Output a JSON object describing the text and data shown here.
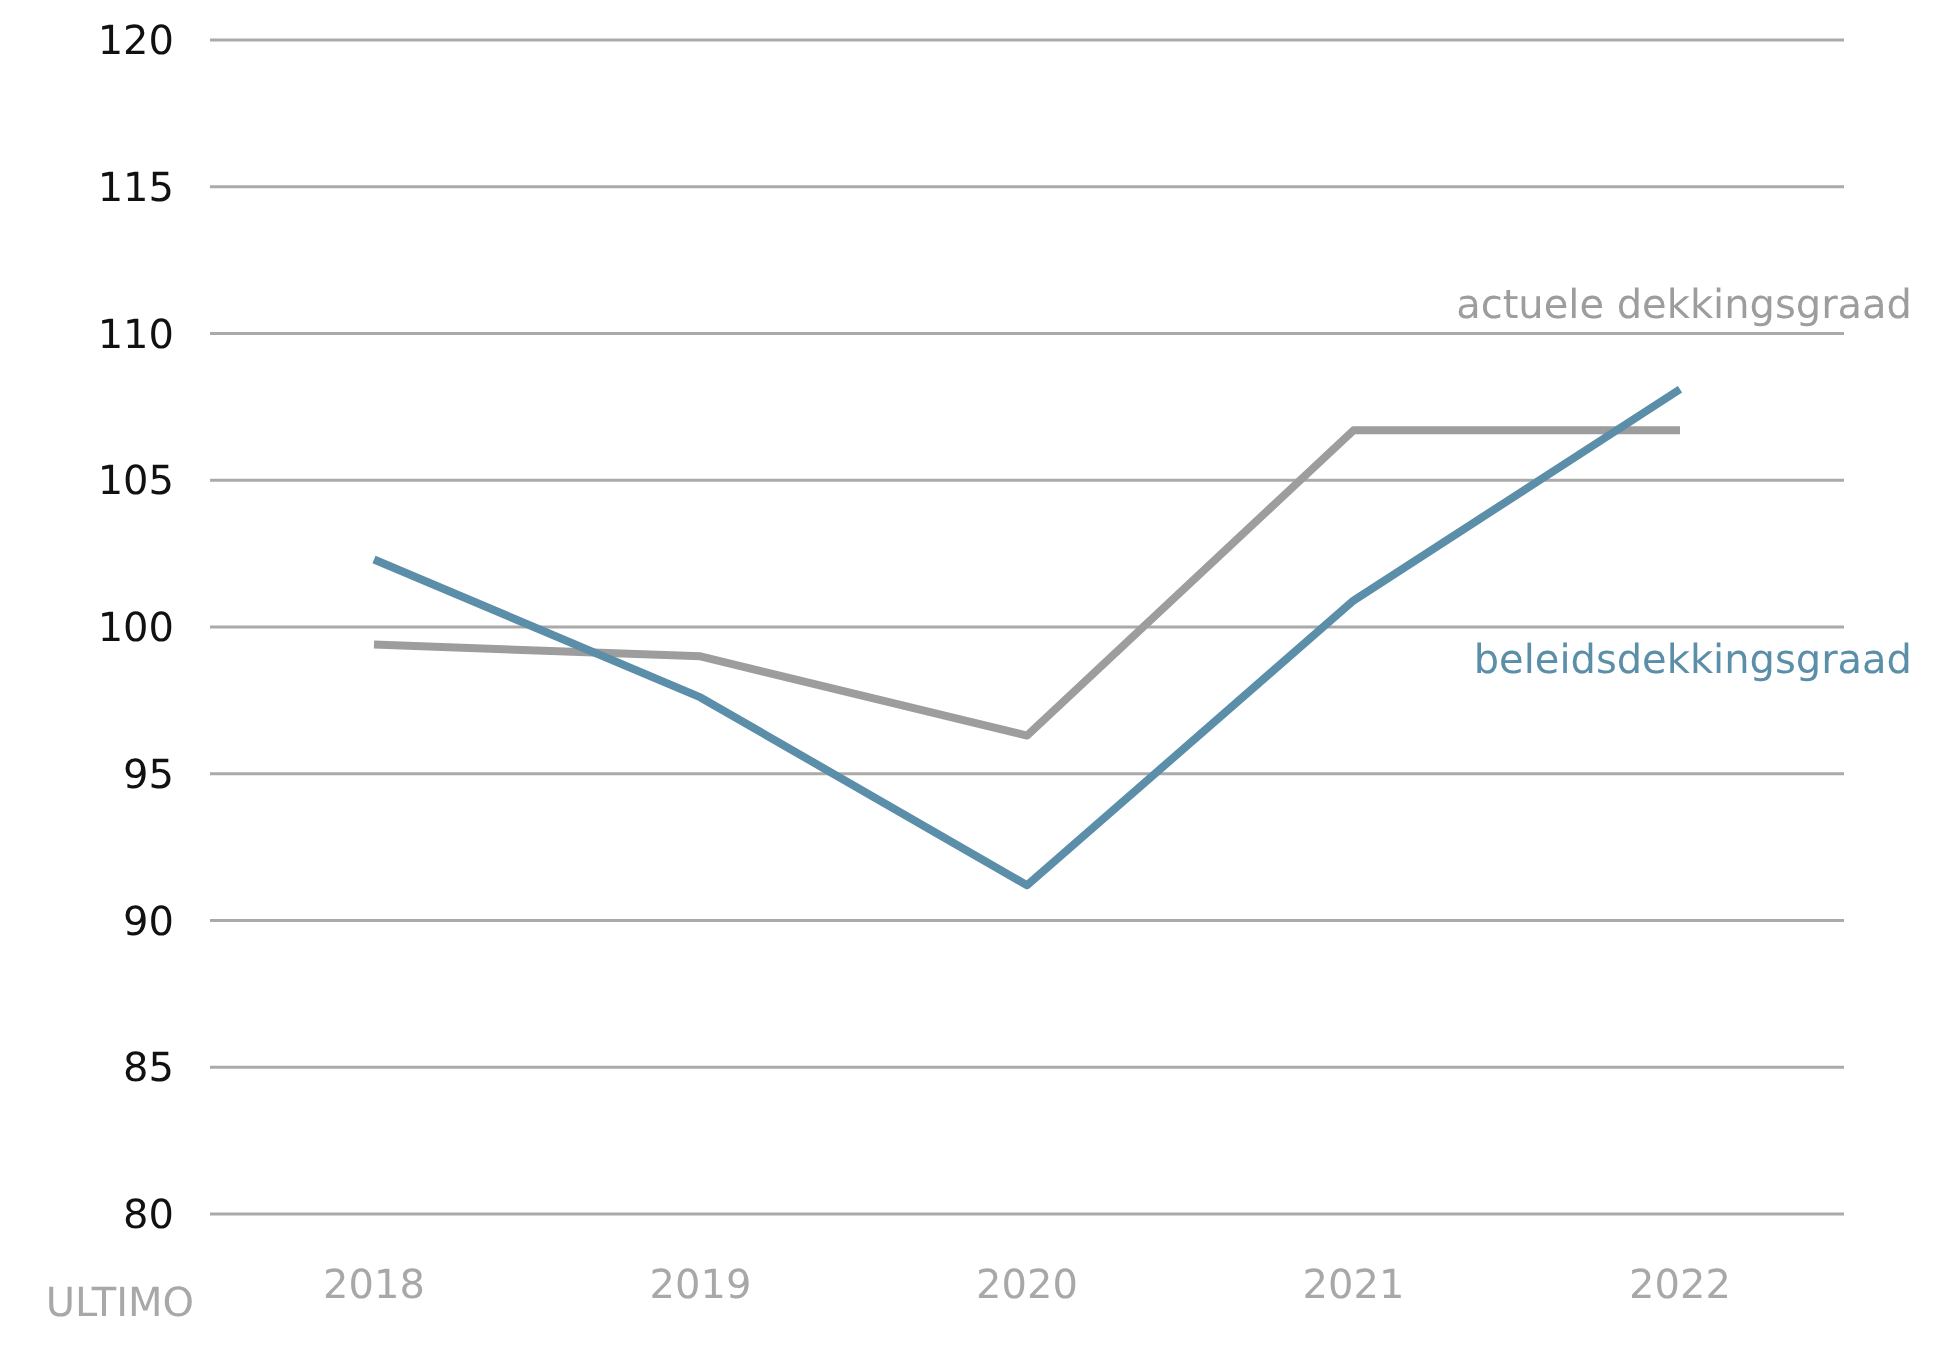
{
  "chart_data": {
    "type": "line",
    "xlabel": "ULTIMO",
    "categories": [
      "2018",
      "2019",
      "2020",
      "2021",
      "2022"
    ],
    "series": [
      {
        "name": "actuele dekkingsgraad",
        "color": "#9d9d9d",
        "values": [
          99.4,
          99.0,
          96.3,
          106.7,
          106.7
        ]
      },
      {
        "name": "beleidsdekkingsgraad",
        "color": "#5b8ea8",
        "values": [
          102.3,
          97.6,
          91.2,
          100.9,
          108.1
        ]
      }
    ],
    "ylim": [
      80,
      120
    ],
    "yticks": [
      80,
      85,
      90,
      95,
      100,
      105,
      110,
      115,
      120
    ],
    "grid": "y",
    "legend": false,
    "marker": "none",
    "line_style": "solid"
  }
}
